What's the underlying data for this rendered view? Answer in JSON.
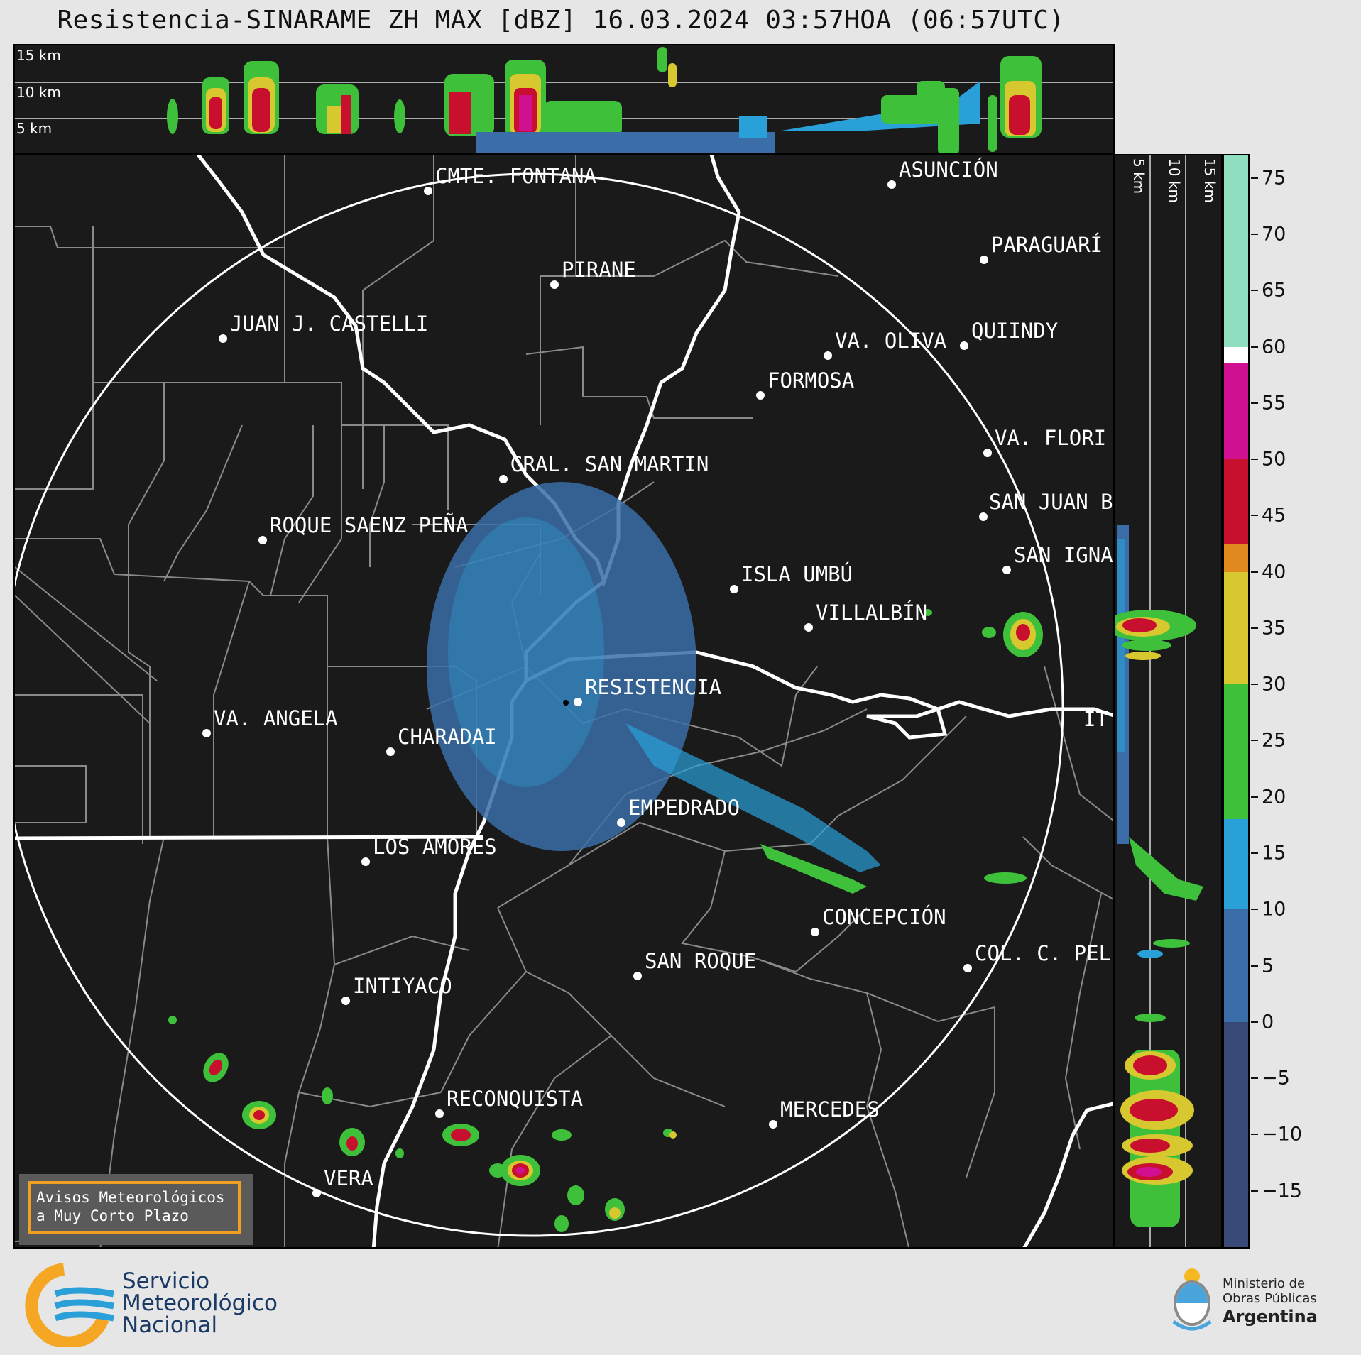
{
  "title": "Resistencia-SINARAME ZH MAX [dBZ] 16.03.2024 03:57HOA (06:57UTC)",
  "top_panel_labels": [
    "15 km",
    "10 km",
    "5 km"
  ],
  "side_panel_labels": [
    "5 km",
    "10 km",
    "15 km"
  ],
  "cities": [
    {
      "name": "CMTE. FONTANA"
    },
    {
      "name": "ASUNCIÓN"
    },
    {
      "name": "PARAGUARÍ"
    },
    {
      "name": "PIRANE"
    },
    {
      "name": "JUAN J. CASTELLI"
    },
    {
      "name": "VA. OLIVA"
    },
    {
      "name": "QUIINDY"
    },
    {
      "name": "FORMOSA"
    },
    {
      "name": "VA. FLORI"
    },
    {
      "name": "GRAL. SAN MARTIN"
    },
    {
      "name": "SAN JUAN B"
    },
    {
      "name": "ROQUE SAENZ PEÑA"
    },
    {
      "name": "SAN IGNA"
    },
    {
      "name": "ISLA UMBÚ"
    },
    {
      "name": "VILLALBÍN"
    },
    {
      "name": "RESISTENCIA"
    },
    {
      "name": "VA. ANGELA"
    },
    {
      "name": "CHARADAI"
    },
    {
      "name": "IT"
    },
    {
      "name": "EMPEDRADO"
    },
    {
      "name": "LOS AMORES"
    },
    {
      "name": "CONCEPCIÓN"
    },
    {
      "name": "SAN ROQUE"
    },
    {
      "name": "COL. C. PEL"
    },
    {
      "name": "INTIYACO"
    },
    {
      "name": "RECONQUISTA"
    },
    {
      "name": "MERCEDES"
    },
    {
      "name": "VERA"
    }
  ],
  "colorbar": {
    "ticks": [
      "75",
      "70",
      "65",
      "60",
      "55",
      "50",
      "45",
      "40",
      "35",
      "30",
      "25",
      "20",
      "15",
      "10",
      "5",
      "0",
      "−5",
      "−10",
      "−15"
    ],
    "range": [
      -20,
      77
    ],
    "bands": [
      {
        "from": -20,
        "to": 0,
        "color": "#3a4a78"
      },
      {
        "from": 0,
        "to": 10,
        "color": "#3b6ea8"
      },
      {
        "from": 10,
        "to": 18,
        "color": "#2aa0d8"
      },
      {
        "from": 18,
        "to": 30,
        "color": "#3ec03a"
      },
      {
        "from": 30,
        "to": 40,
        "color": "#d8c830"
      },
      {
        "from": 40,
        "to": 42.5,
        "color": "#e08a20"
      },
      {
        "from": 42.5,
        "to": 50,
        "color": "#c8102e"
      },
      {
        "from": 50,
        "to": 58.5,
        "color": "#d01090"
      },
      {
        "from": 58.5,
        "to": 60,
        "color": "#ffffff"
      },
      {
        "from": 60,
        "to": 77,
        "color": "#90dfc0"
      }
    ]
  },
  "avisos": {
    "line1": "Avisos Meteorológicos",
    "line2": "a Muy Corto Plazo"
  },
  "smn": {
    "line1": "Servicio",
    "line2": "Meteorológico",
    "line3": "Nacional"
  },
  "ministerio": {
    "line1": "Ministerio de",
    "line2": "Obras Públicas",
    "line3": "Argentina"
  }
}
